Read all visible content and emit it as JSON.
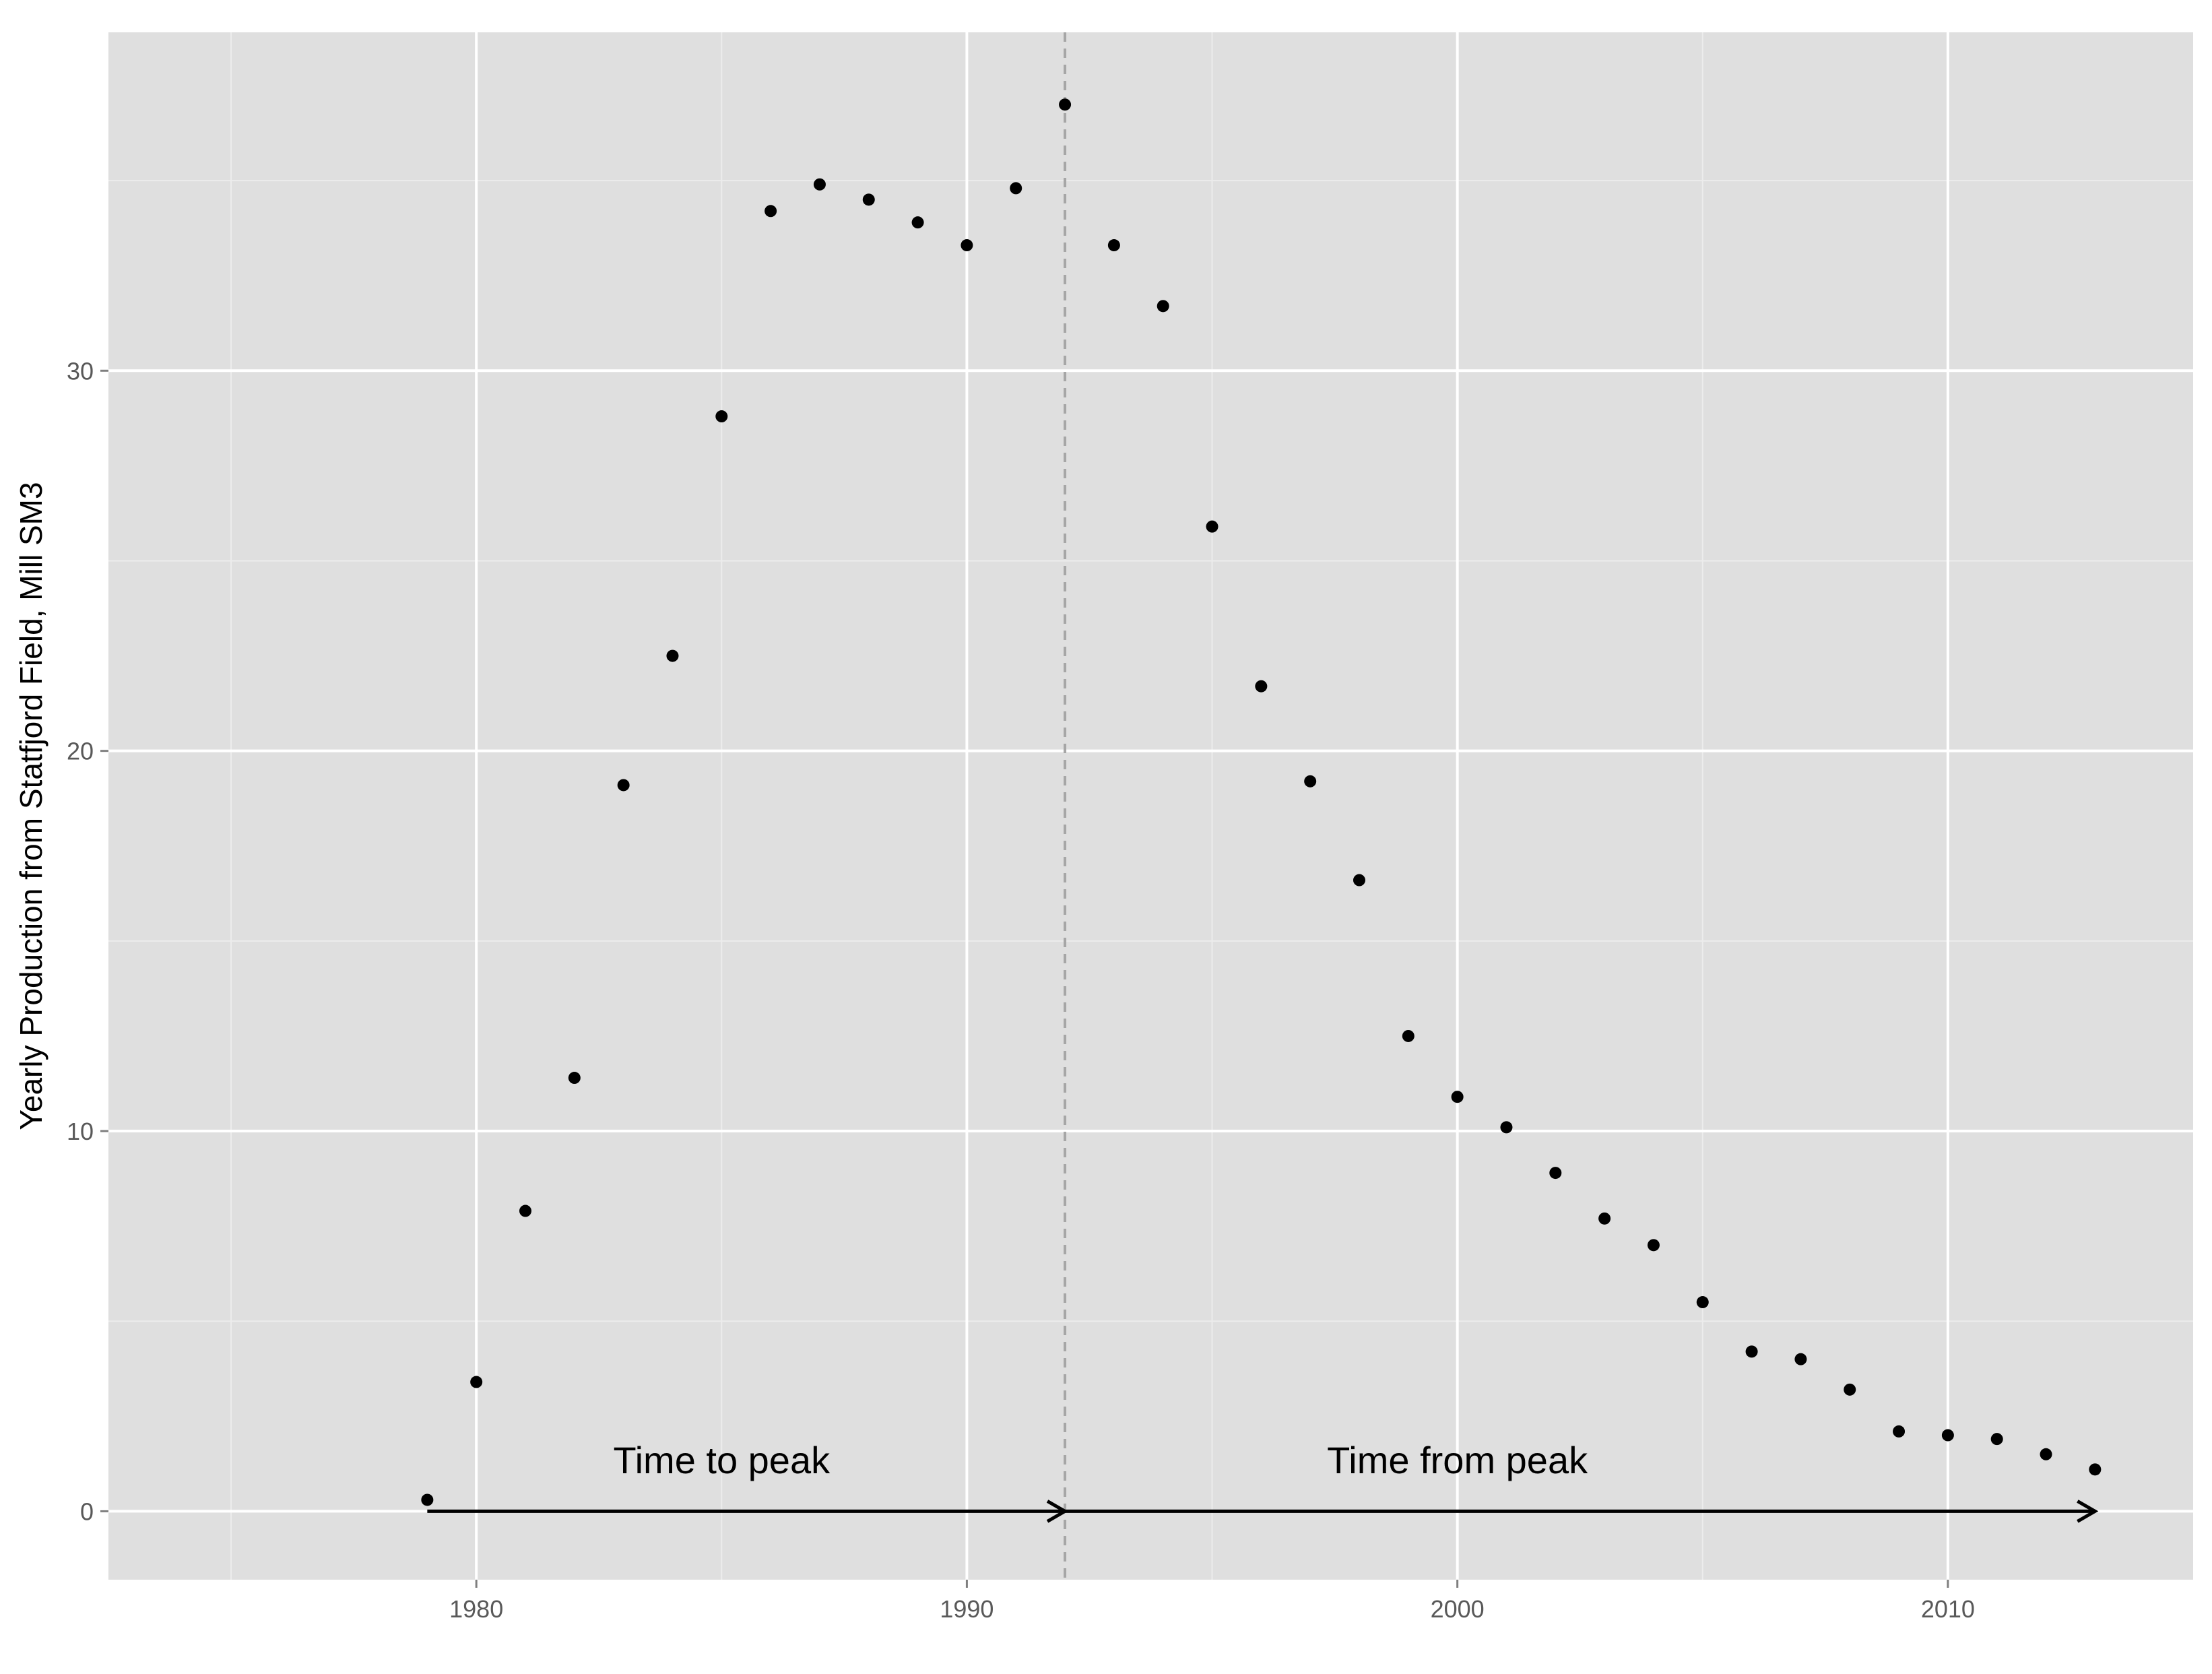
{
  "chart_data": {
    "type": "scatter",
    "title": "",
    "xlabel": "",
    "ylabel": "Yearly Production from Statfjord Field, Mill SM3",
    "xlim": [
      1972.5,
      2015.0
    ],
    "ylim": [
      -1.8,
      38.9
    ],
    "x_ticks": [
      1980,
      1990,
      2000,
      2010
    ],
    "y_ticks": [
      0,
      10,
      20,
      30
    ],
    "x_minor": [
      1975,
      1985,
      1995,
      2005
    ],
    "y_minor": [
      5,
      15,
      25,
      35
    ],
    "grid": true,
    "legend": "none",
    "peak_year": 1992,
    "points": [
      {
        "x": 1979,
        "y": 0.3
      },
      {
        "x": 1980,
        "y": 3.4
      },
      {
        "x": 1981,
        "y": 7.9
      },
      {
        "x": 1982,
        "y": 11.4
      },
      {
        "x": 1983,
        "y": 19.1
      },
      {
        "x": 1984,
        "y": 22.5
      },
      {
        "x": 1985,
        "y": 28.8
      },
      {
        "x": 1986,
        "y": 34.2
      },
      {
        "x": 1987,
        "y": 34.9
      },
      {
        "x": 1988,
        "y": 34.5
      },
      {
        "x": 1989,
        "y": 33.9
      },
      {
        "x": 1990,
        "y": 33.3
      },
      {
        "x": 1991,
        "y": 34.8
      },
      {
        "x": 1992,
        "y": 37.0
      },
      {
        "x": 1993,
        "y": 33.3
      },
      {
        "x": 1994,
        "y": 31.7
      },
      {
        "x": 1995,
        "y": 25.9
      },
      {
        "x": 1996,
        "y": 21.7
      },
      {
        "x": 1997,
        "y": 19.2
      },
      {
        "x": 1998,
        "y": 16.6
      },
      {
        "x": 1999,
        "y": 12.5
      },
      {
        "x": 2000,
        "y": 10.9
      },
      {
        "x": 2001,
        "y": 10.1
      },
      {
        "x": 2002,
        "y": 8.9
      },
      {
        "x": 2003,
        "y": 7.7
      },
      {
        "x": 2004,
        "y": 7.0
      },
      {
        "x": 2005,
        "y": 5.5
      },
      {
        "x": 2006,
        "y": 4.2
      },
      {
        "x": 2007,
        "y": 4.0
      },
      {
        "x": 2008,
        "y": 3.2
      },
      {
        "x": 2009,
        "y": 2.1
      },
      {
        "x": 2010,
        "y": 2.0
      },
      {
        "x": 2011,
        "y": 1.9
      },
      {
        "x": 2012,
        "y": 1.5
      },
      {
        "x": 2013,
        "y": 1.1
      }
    ],
    "arrows": [
      {
        "from": [
          1979,
          0
        ],
        "to": [
          1992,
          0
        ]
      },
      {
        "from": [
          1992,
          0
        ],
        "to": [
          2013,
          0
        ]
      }
    ],
    "annotations": [
      {
        "text": "Time to peak",
        "x": 1985,
        "y": 1.0
      },
      {
        "text": "Time from peak",
        "x": 2000,
        "y": 1.0
      }
    ],
    "colors": {
      "panel": "#dfdfdf",
      "grid_major": "#ffffff",
      "grid_minor": "#ececec",
      "points": "#000000",
      "vline": "#a6a6a6",
      "tick_label": "#595959"
    }
  }
}
